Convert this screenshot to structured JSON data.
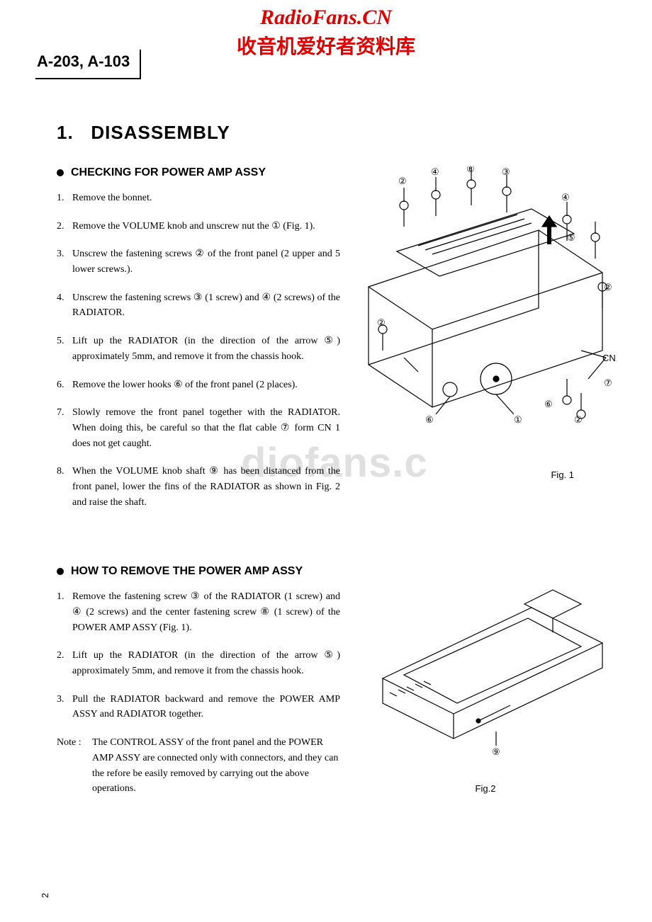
{
  "watermark": {
    "line1": "RadioFans.CN",
    "line2": "收音机爱好者资料库",
    "mid": "diofans.c",
    "color": "#e00000"
  },
  "model": "A-203, A-103",
  "section": {
    "number": "1.",
    "title": "DISASSEMBLY"
  },
  "block1": {
    "heading": "CHECKING FOR POWER AMP ASSY",
    "steps": [
      {
        "n": "1.",
        "t": "Remove the bonnet."
      },
      {
        "n": "2.",
        "t": "Remove the VOLUME knob and unscrew nut the ① (Fig. 1)."
      },
      {
        "n": "3.",
        "t": "Unscrew the fastening screws ② of the front panel (2 upper and 5 lower screws.)."
      },
      {
        "n": "4.",
        "t": "Unscrew the fastening screws ③ (1 screw) and ④ (2 screws) of the RADIATOR."
      },
      {
        "n": "5.",
        "t": "Lift up the RADIATOR (in the direction of the arrow ⑤) approximately 5mm, and remove it from the chassis hook."
      },
      {
        "n": "6.",
        "t": "Remove the lower hooks ⑥ of the front panel (2 places)."
      },
      {
        "n": "7.",
        "t": "Slowly remove the front panel together with the RADIATOR. When doing this, be careful so that the flat cable ⑦ form CN 1 does not get caught."
      },
      {
        "n": "8.",
        "t": "When the VOLUME knob shaft ⑨ has been distanced from the front panel, lower the fins of the RADIATOR as shown in Fig. 2 and raise the shaft."
      }
    ]
  },
  "block2": {
    "heading": "HOW TO REMOVE THE POWER AMP ASSY",
    "steps": [
      {
        "n": "1.",
        "t": "Remove the fastening screw ③ of the RADIATOR (1 screw) and ④ (2 screws) and the center fastening screw ⑧ (1 screw) of the POWER AMP ASSY (Fig. 1)."
      },
      {
        "n": "2.",
        "t": "Lift up the RADIATOR (in the direction of the arrow ⑤) approximately 5mm, and remove it from the chassis hook."
      },
      {
        "n": "3.",
        "t": "Pull the RADIATOR backward and remove the POWER AMP ASSY and RADIATOR together."
      }
    ],
    "note_label": "Note :",
    "note": "The CONTROL ASSY of the front panel and the POWER AMP ASSY are connected only with connectors, and they can the refore be easily removed by carrying out the above operations."
  },
  "fig1": {
    "caption": "Fig. 1",
    "labels": [
      "①",
      "②",
      "③",
      "④",
      "⑤",
      "⑥",
      "⑦",
      "⑧",
      "CN1"
    ]
  },
  "fig2": {
    "caption": "Fig.2",
    "labels": [
      "⑨"
    ]
  },
  "page_number": "2",
  "colors": {
    "text": "#000000",
    "bg": "#ffffff",
    "wm_gray": "#e0e0e0"
  }
}
